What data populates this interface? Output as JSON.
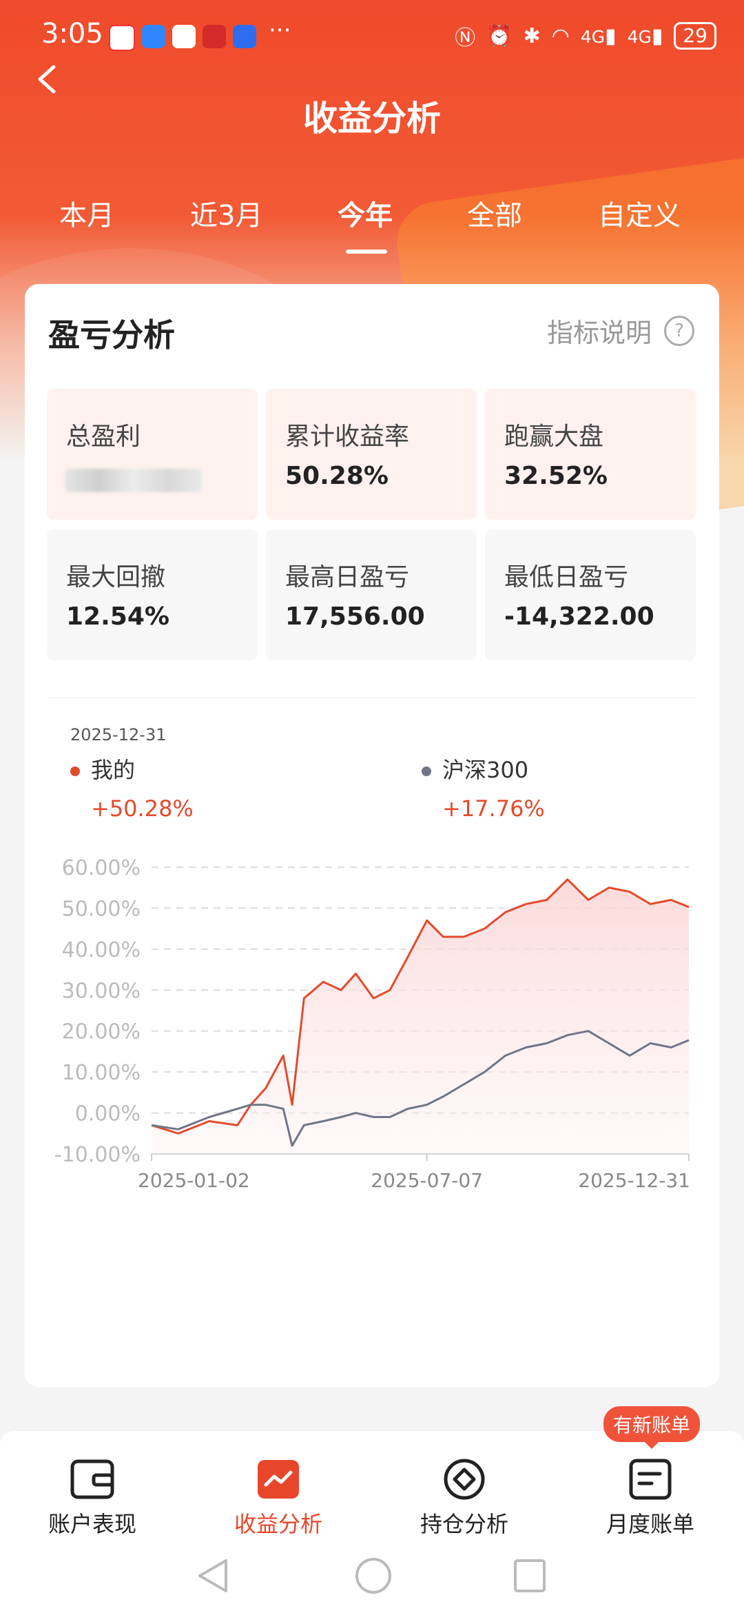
{
  "status_bar": {
    "time": "3:05",
    "dots": "···",
    "battery": "29",
    "signal_labels": [
      "4G",
      "4G"
    ]
  },
  "header": {
    "title": "收益分析"
  },
  "tabs": [
    {
      "label": "本月",
      "active": false
    },
    {
      "label": "近3月",
      "active": false
    },
    {
      "label": "今年",
      "active": true
    },
    {
      "label": "全部",
      "active": false
    },
    {
      "label": "自定义",
      "active": false
    }
  ],
  "card": {
    "title": "盈亏分析",
    "help_label": "指标说明",
    "help_icon": "?",
    "metrics": [
      {
        "label": "总盈利",
        "value": ""
      },
      {
        "label": "累计收益率",
        "value": "50.28%"
      },
      {
        "label": "跑赢大盘",
        "value": "32.52%"
      },
      {
        "label": "最大回撤",
        "value": "12.54%"
      },
      {
        "label": "最高日盈亏",
        "value": "17,556.00"
      },
      {
        "label": "最低日盈亏",
        "value": "-14,322.00"
      }
    ]
  },
  "legend": {
    "date": "2025-12-31",
    "mine": {
      "name": "我的",
      "value": "+50.28%",
      "color": "#e34a2c"
    },
    "index": {
      "name": "沪深300",
      "value": "+17.76%",
      "color": "#6f7587"
    }
  },
  "chart_data": {
    "type": "line",
    "ylim": [
      -10,
      60
    ],
    "yticks": [
      "60.00%",
      "50.00%",
      "40.00%",
      "30.00%",
      "20.00%",
      "10.00%",
      "0.00%",
      "-10.00%"
    ],
    "xticks": [
      "2025-01-02",
      "2025-07-07",
      "2025-12-31"
    ],
    "grid": true,
    "x": [
      "2025-01-02",
      "2025-01-20",
      "2025-02-10",
      "2025-03-01",
      "2025-03-10",
      "2025-03-20",
      "2025-04-01",
      "2025-04-07",
      "2025-04-15",
      "2025-04-28",
      "2025-05-10",
      "2025-05-20",
      "2025-06-01",
      "2025-06-12",
      "2025-06-24",
      "2025-07-07",
      "2025-07-18",
      "2025-08-01",
      "2025-08-15",
      "2025-08-29",
      "2025-09-12",
      "2025-09-26",
      "2025-10-10",
      "2025-10-24",
      "2025-11-07",
      "2025-11-21",
      "2025-12-05",
      "2025-12-19",
      "2025-12-31"
    ],
    "series": [
      {
        "name": "我的",
        "color": "#e34a2c",
        "values": [
          -3,
          -5,
          -2,
          -3,
          2,
          6,
          14,
          2,
          28,
          32,
          30,
          34,
          28,
          30,
          38,
          47,
          43,
          43,
          45,
          49,
          51,
          52,
          57,
          52,
          55,
          54,
          51,
          52,
          50.28
        ]
      },
      {
        "name": "沪深300",
        "color": "#6f7587",
        "values": [
          -3,
          -4,
          -1,
          1,
          2,
          2,
          1,
          -8,
          -3,
          -2,
          -1,
          0,
          -1,
          -1,
          1,
          2,
          4,
          7,
          10,
          14,
          16,
          17,
          19,
          20,
          17,
          14,
          17,
          16,
          17.76
        ]
      }
    ]
  },
  "bottom_nav": {
    "badge": "有新账单",
    "items": [
      {
        "label": "账户表现",
        "icon": "wallet-icon",
        "active": false
      },
      {
        "label": "收益分析",
        "icon": "trend-chart-icon",
        "active": true
      },
      {
        "label": "持仓分析",
        "icon": "diamond-icon",
        "active": false
      },
      {
        "label": "月度账单",
        "icon": "bill-icon",
        "active": false
      }
    ]
  }
}
